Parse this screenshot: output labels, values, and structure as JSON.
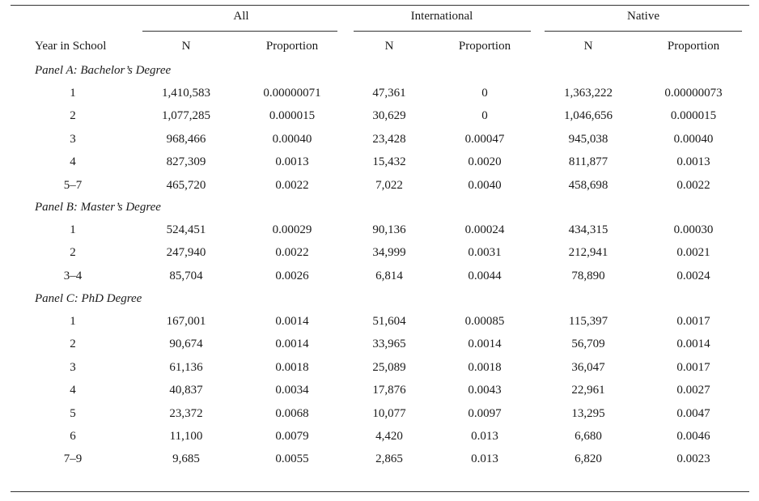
{
  "table": {
    "groups": [
      "All",
      "International",
      "Native"
    ],
    "columns": [
      "Year in School",
      "N",
      "Proportion",
      "N",
      "Proportion",
      "N",
      "Proportion"
    ],
    "panels": [
      {
        "label": "Panel A: Bachelor’s Degree",
        "rows": [
          [
            "1",
            "1,410,583",
            "0.00000071",
            "47,361",
            "0",
            "1,363,222",
            "0.00000073"
          ],
          [
            "2",
            "1,077,285",
            "0.000015",
            "30,629",
            "0",
            "1,046,656",
            "0.000015"
          ],
          [
            "3",
            "968,466",
            "0.00040",
            "23,428",
            "0.00047",
            "945,038",
            "0.00040"
          ],
          [
            "4",
            "827,309",
            "0.0013",
            "15,432",
            "0.0020",
            "811,877",
            "0.0013"
          ],
          [
            "5–7",
            "465,720",
            "0.0022",
            "7,022",
            "0.0040",
            "458,698",
            "0.0022"
          ]
        ]
      },
      {
        "label": "Panel B: Master’s Degree",
        "rows": [
          [
            "1",
            "524,451",
            "0.00029",
            "90,136",
            "0.00024",
            "434,315",
            "0.00030"
          ],
          [
            "2",
            "247,940",
            "0.0022",
            "34,999",
            "0.0031",
            "212,941",
            "0.0021"
          ],
          [
            "3–4",
            "85,704",
            "0.0026",
            "6,814",
            "0.0044",
            "78,890",
            "0.0024"
          ]
        ]
      },
      {
        "label": "Panel C: PhD Degree",
        "rows": [
          [
            "1",
            "167,001",
            "0.0014",
            "51,604",
            "0.00085",
            "115,397",
            "0.0017"
          ],
          [
            "2",
            "90,674",
            "0.0014",
            "33,965",
            "0.0014",
            "56,709",
            "0.0014"
          ],
          [
            "3",
            "61,136",
            "0.0018",
            "25,089",
            "0.0018",
            "36,047",
            "0.0017"
          ],
          [
            "4",
            "40,837",
            "0.0034",
            "17,876",
            "0.0043",
            "22,961",
            "0.0027"
          ],
          [
            "5",
            "23,372",
            "0.0068",
            "10,077",
            "0.0097",
            "13,295",
            "0.0047"
          ],
          [
            "6",
            "11,100",
            "0.0079",
            "4,420",
            "0.013",
            "6,680",
            "0.0046"
          ],
          [
            "7–9",
            "9,685",
            "0.0055",
            "2,865",
            "0.013",
            "6,820",
            "0.0023"
          ]
        ]
      }
    ]
  }
}
